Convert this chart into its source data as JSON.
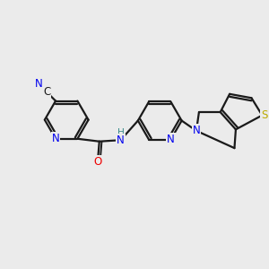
{
  "bg_color": "#ebebeb",
  "bond_color": "#1a1a1a",
  "bond_width": 1.6,
  "atom_colors": {
    "N": "#0000ee",
    "O": "#ee0000",
    "S": "#bbaa00",
    "H": "#3a8a8a"
  },
  "font_size_atom": 8.5
}
